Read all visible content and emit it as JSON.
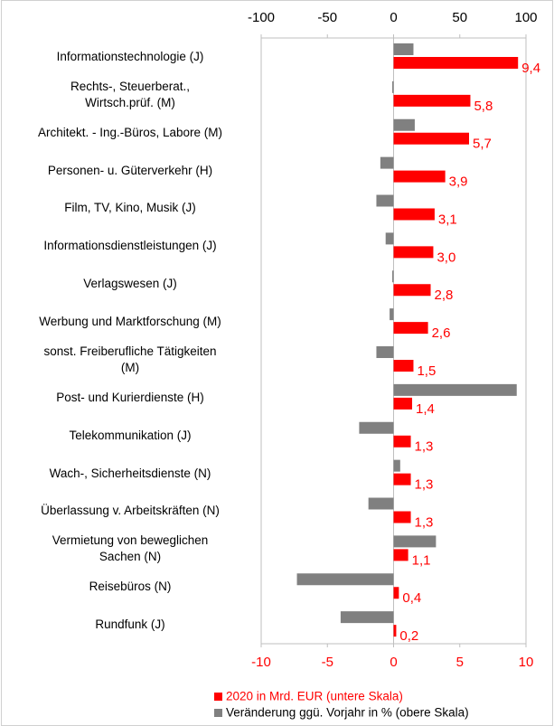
{
  "chart_data": {
    "type": "bar",
    "orientation": "horizontal",
    "categories": [
      "Informationstechnologie (J)",
      "Rechts-, Steuerberat.,\nWirtsch.prüf. (M)",
      "Architekt. - Ing.-Büros, Labore (M)",
      "Personen- u. Güterverkehr (H)",
      "Film, TV, Kino, Musik (J)",
      "Informationsdienstleistungen (J)",
      "Verlagswesen (J)",
      "Werbung und Marktforschung (M)",
      "sonst. Freiberufliche Tätigkeiten\n(M)",
      "Post- und Kurierdienste (H)",
      "Telekommunikation (J)",
      "Wach-, Sicherheitsdienste (N)",
      "Überlassung v. Arbeitskräften (N)",
      "Vermietung von beweglichen\nSachen (N)",
      "Reisebüros (N)",
      "Rundfunk (J)"
    ],
    "series": [
      {
        "name": "2020 in Mrd. EUR (untere Skala)",
        "color": "#ff0000",
        "axis": "x",
        "values": [
          9.4,
          5.8,
          5.7,
          3.9,
          3.1,
          3.0,
          2.8,
          2.6,
          1.5,
          1.4,
          1.3,
          1.3,
          1.3,
          1.1,
          0.4,
          0.2
        ],
        "value_labels": [
          "9,4",
          "5,8",
          "5,7",
          "3,9",
          "3,1",
          "3,0",
          "2,8",
          "2,6",
          "1,5",
          "1,4",
          "1,3",
          "1,3",
          "1,3",
          "1,1",
          "0,4",
          "0,2"
        ]
      },
      {
        "name": "Veränderung ggü. Vorjahr in % (obere Skala)",
        "color": "#808080",
        "axis": "x2",
        "values": [
          15,
          -1,
          16,
          -10,
          -13,
          -6,
          -1,
          -3,
          -13,
          93,
          -26,
          5,
          -19,
          32,
          -73,
          -40
        ]
      }
    ],
    "xlim": [
      -10,
      10
    ],
    "xticks": [
      -10,
      -5,
      0,
      5,
      10
    ],
    "x2lim": [
      -100,
      100
    ],
    "x2ticks": [
      -100,
      -50,
      0,
      50,
      100
    ],
    "grid": false,
    "legend": "bottom"
  }
}
